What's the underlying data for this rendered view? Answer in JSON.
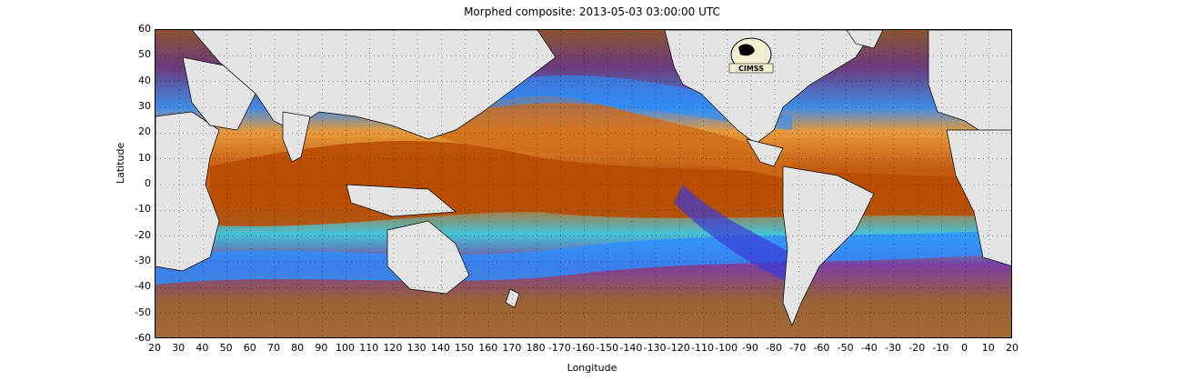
{
  "title": "Morphed composite: 2013-05-03 03:00:00 UTC",
  "xlabel": "Longitude",
  "ylabel": "Latitude",
  "y_ticks": [
    "60",
    "50",
    "40",
    "30",
    "20",
    "10",
    "0",
    "-10",
    "-20",
    "-30",
    "-40",
    "-50",
    "-60"
  ],
  "x_ticks": [
    "20",
    "30",
    "40",
    "50",
    "60",
    "70",
    "80",
    "90",
    "100",
    "110",
    "120",
    "130",
    "140",
    "150",
    "160",
    "170",
    "180",
    "-170",
    "-160",
    "-150",
    "-140",
    "-130",
    "-120",
    "-110",
    "-100",
    "-90",
    "-80",
    "-70",
    "-60",
    "-50",
    "-40",
    "-30",
    "-20",
    "-10",
    "0",
    "10",
    "20"
  ],
  "logo_text": "CIMSS",
  "colors": {
    "moist": "#b84a00",
    "mid": "#f08a20",
    "green": "#4ddc6a",
    "blue": "#2a90ff",
    "dryblue": "#3a3ad8",
    "purple": "#7a2a9a",
    "dry": "#9a6030",
    "land": "#e4e4e4"
  }
}
